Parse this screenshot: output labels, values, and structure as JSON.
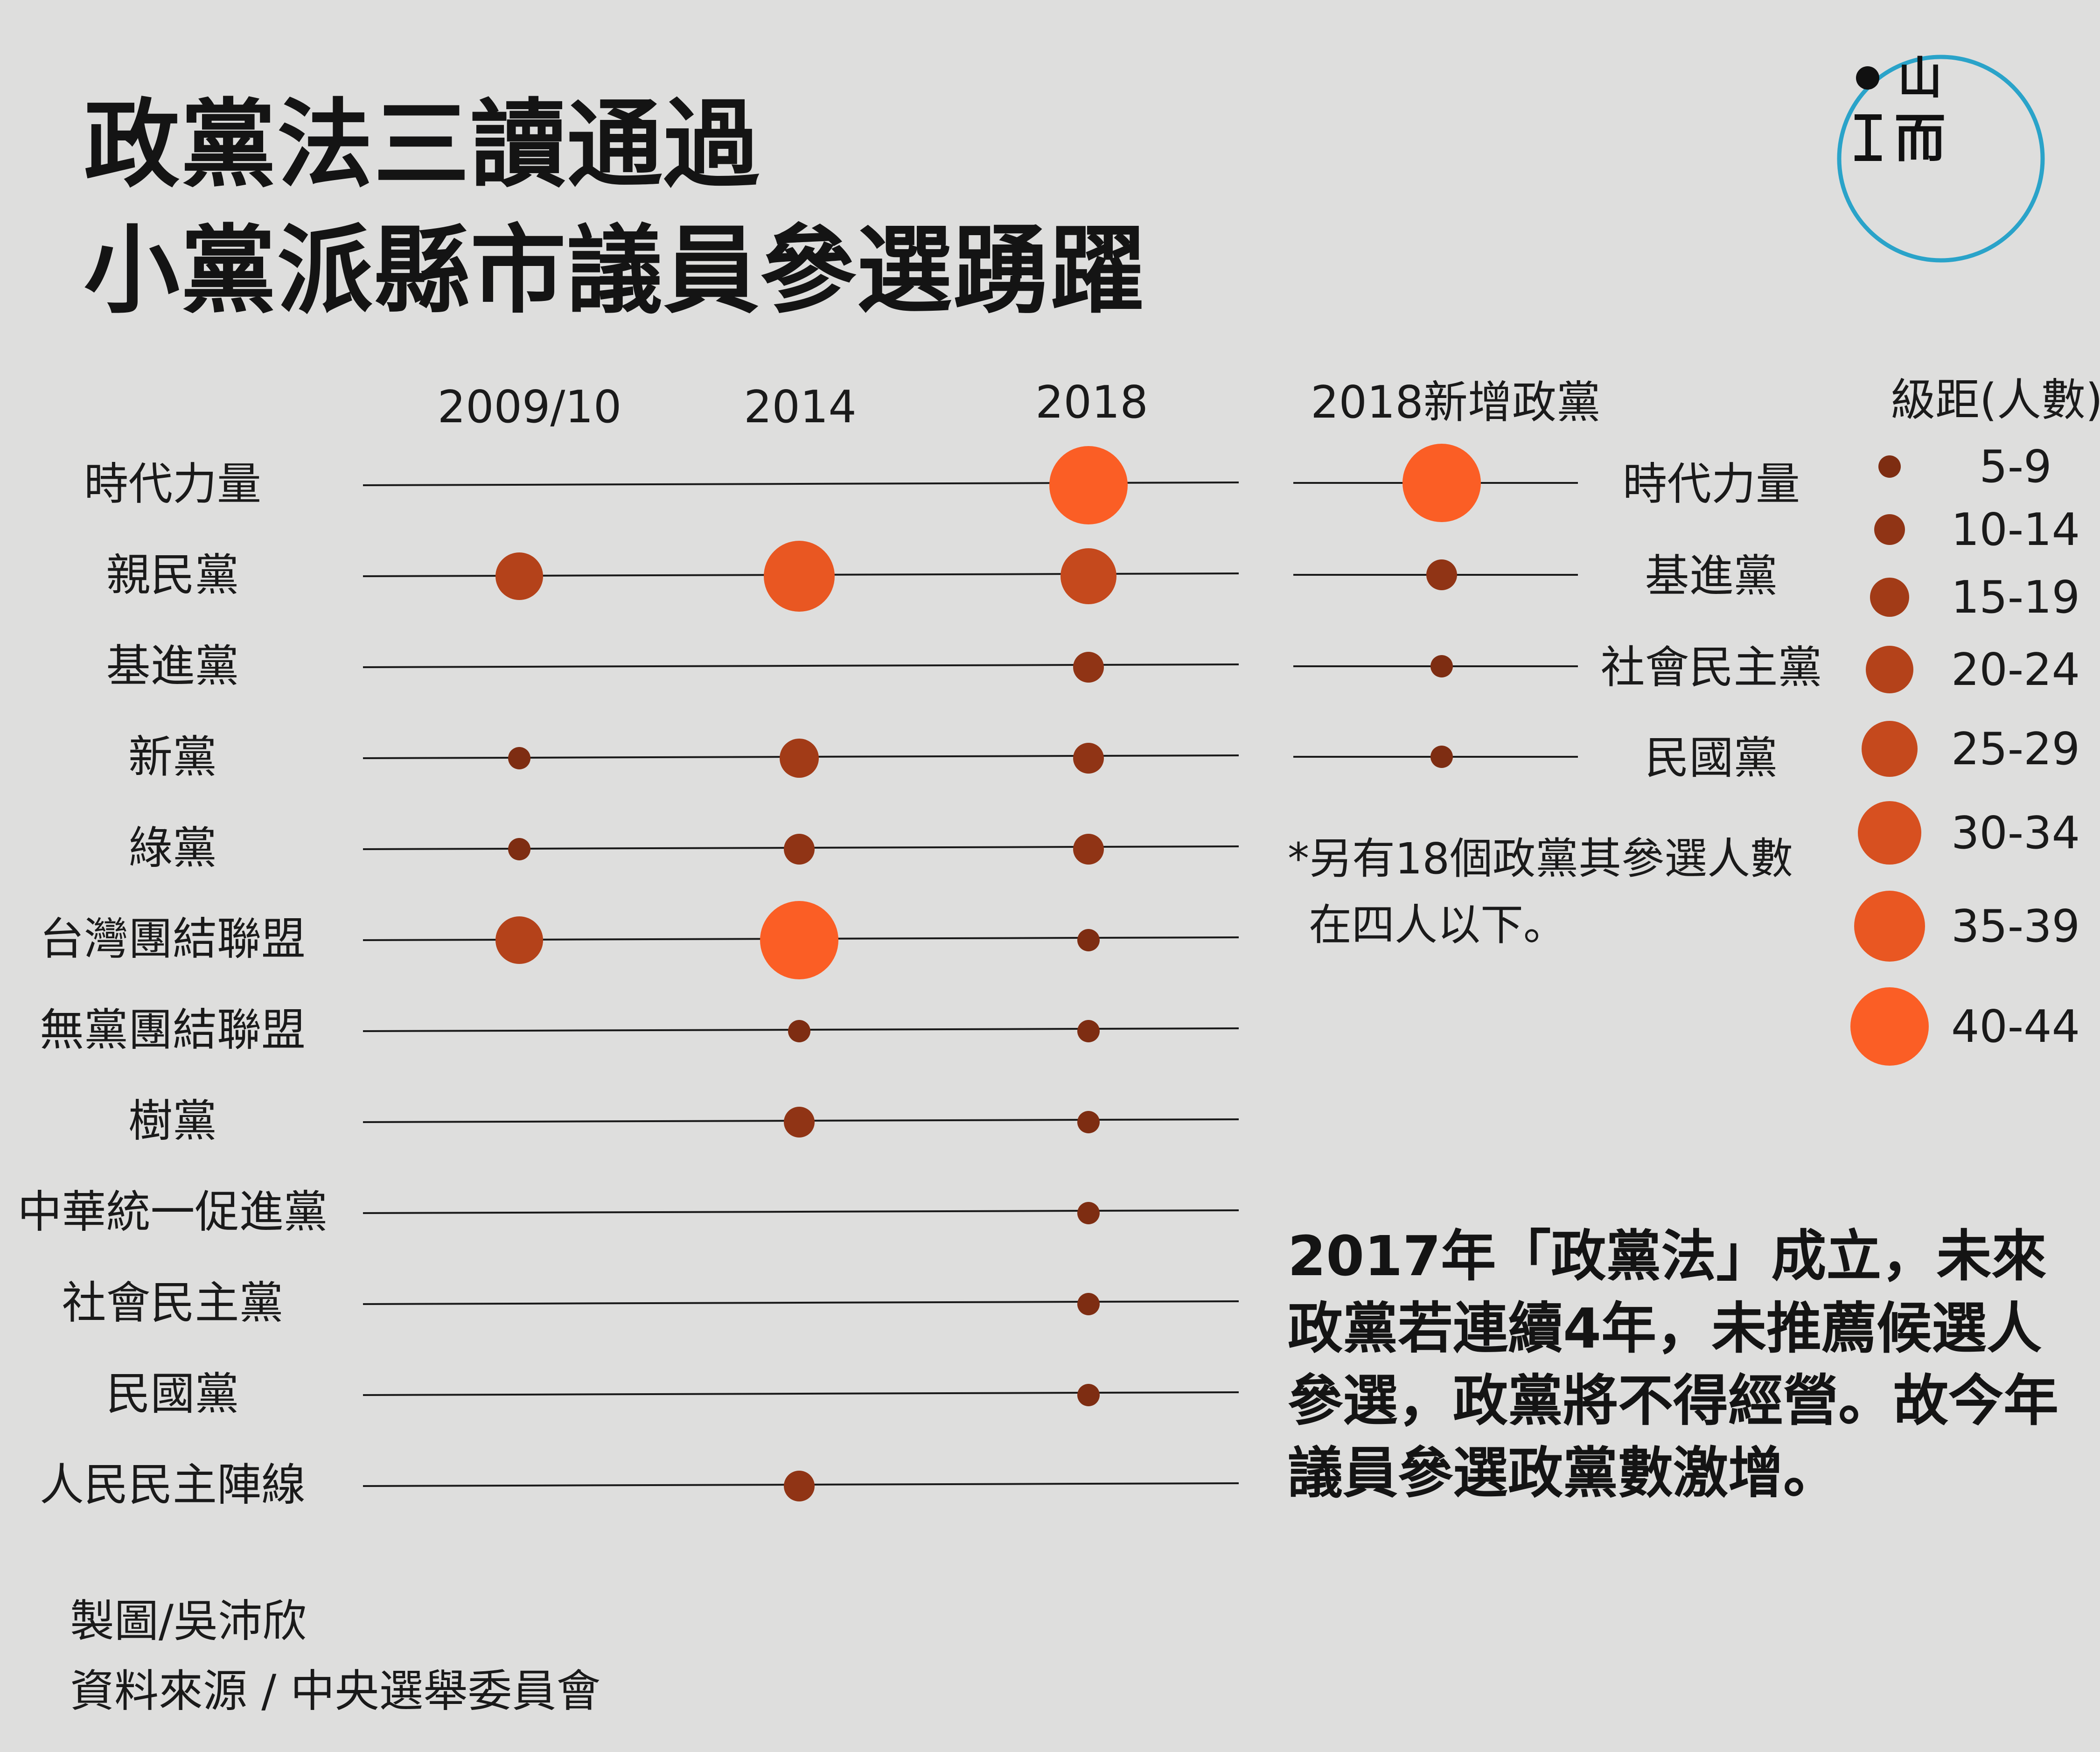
{
  "title": {
    "line1": "政黨法三讀通過",
    "line2": "小黨派縣市議員參選踴躍"
  },
  "columns": {
    "y2009": "2009/10",
    "y2014": "2014",
    "y2018": "2018",
    "new_parties": "2018新增政黨"
  },
  "legend": {
    "title": "級距(人數)",
    "ranges": [
      "5-9",
      "10-14",
      "15-19",
      "20-24",
      "25-29",
      "30-34",
      "35-39",
      "40-44"
    ]
  },
  "colors": {
    "background": "#dededd",
    "dot_small": "#7e2d12",
    "dot_large": "#fb5e25",
    "logo_ring": "#2aa3c9"
  },
  "chart_data": {
    "type": "scatter",
    "title": "政黨法三讀通過 小黨派縣市議員參選踴躍",
    "x": [
      "2009/10",
      "2014",
      "2018"
    ],
    "value_unit": "級距(人數) bracket index: 0=5-9, 1=10-14, 2=15-19, 3=20-24, 4=25-29, 5=30-34, 6=35-39, 7=40-44",
    "rows": [
      {
        "party": "時代力量",
        "values": [
          null,
          null,
          7
        ]
      },
      {
        "party": "親民黨",
        "values": [
          3,
          6,
          4
        ]
      },
      {
        "party": "基進黨",
        "values": [
          null,
          null,
          1
        ]
      },
      {
        "party": "新黨",
        "values": [
          0,
          2,
          1
        ]
      },
      {
        "party": "綠黨",
        "values": [
          0,
          1,
          1
        ]
      },
      {
        "party": "台灣團結聯盟",
        "values": [
          3,
          7,
          0
        ]
      },
      {
        "party": "無黨團結聯盟",
        "values": [
          null,
          0,
          0
        ]
      },
      {
        "party": "樹黨",
        "values": [
          null,
          1,
          0
        ]
      },
      {
        "party": "中華統一促進黨",
        "values": [
          null,
          null,
          0
        ]
      },
      {
        "party": "社會民主黨",
        "values": [
          null,
          null,
          0
        ]
      },
      {
        "party": "民國黨",
        "values": [
          null,
          null,
          0
        ]
      },
      {
        "party": "人民民主陣線",
        "values": [
          null,
          1,
          null
        ]
      }
    ],
    "new_parties_2018": [
      {
        "party": "時代力量",
        "value": 7
      },
      {
        "party": "基進黨",
        "value": 1
      },
      {
        "party": "社會民主黨",
        "value": 0
      },
      {
        "party": "民國黨",
        "value": 0
      }
    ]
  },
  "note": {
    "line1": "*另有18個政黨其參選人數",
    "line2": "在四人以下。"
  },
  "summary": "2017年「政黨法」成立，未來政黨若連續4年，未推薦候選人參選，政黨將不得經營。故今年議員參選政黨數激增。",
  "credits": {
    "author": "製圖/吳沛欣",
    "source": "資料來源 / 中央選舉委員會"
  },
  "logo": {
    "text1": "山",
    "text2": "而"
  }
}
